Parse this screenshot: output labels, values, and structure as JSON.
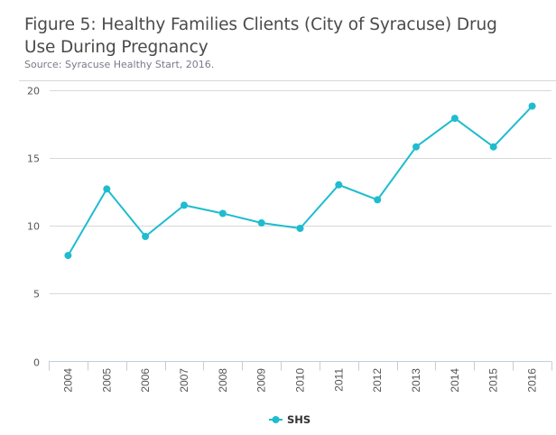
{
  "header": {
    "title": "Figure 5: Healthy Families Clients (City of Syracuse) Drug Use During Pregnancy",
    "source": "Source: Syracuse Healthy Start, 2016."
  },
  "chart_data": {
    "type": "line",
    "title": "Figure 5: Healthy Families Clients (City of Syracuse) Drug Use During Pregnancy",
    "subtitle": "Source: Syracuse Healthy Start, 2016.",
    "xlabel": "",
    "ylabel": "",
    "categories": [
      "2004",
      "2005",
      "2006",
      "2007",
      "2008",
      "2009",
      "2010",
      "2011",
      "2012",
      "2013",
      "2014",
      "2015",
      "2016"
    ],
    "series": [
      {
        "name": "SHS",
        "color": "#1fbccf",
        "values": [
          7.8,
          12.7,
          9.2,
          11.5,
          10.9,
          10.2,
          9.8,
          13.0,
          11.9,
          15.8,
          17.9,
          15.8,
          18.8
        ]
      }
    ],
    "ylim": [
      0,
      20
    ],
    "yticks": [
      0,
      5,
      10,
      15,
      20
    ],
    "grid": true,
    "legend": "bottom-center"
  }
}
